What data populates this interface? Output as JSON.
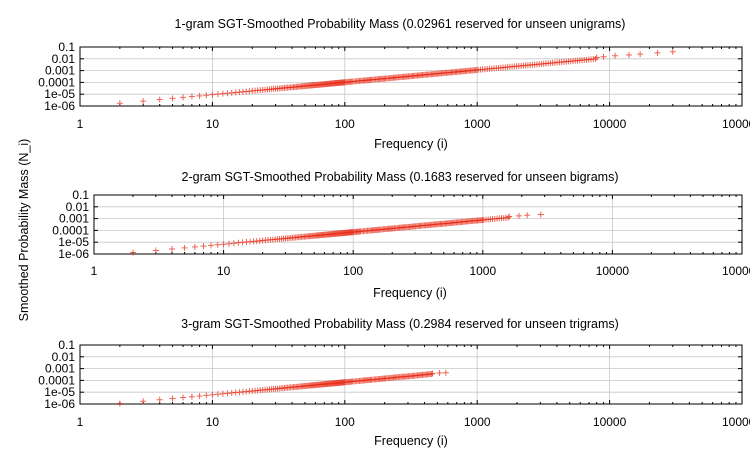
{
  "figure": {
    "shared_ylabel": "Smoothed Probability Mass (N_i)"
  },
  "chart_data": [
    {
      "type": "scatter",
      "title": "1-gram SGT-Smoothed Probability Mass (0.02961 reserved for unseen unigrams)",
      "xlabel": "Frequency (i)",
      "ylabel": "",
      "x_scale": "log",
      "y_scale": "log",
      "xlim": [
        1,
        100000
      ],
      "ylim": [
        1e-06,
        0.1
      ],
      "x_ticks": [
        "1",
        "10",
        "100",
        "1000",
        "10000",
        "100000"
      ],
      "y_ticks": [
        "0.1",
        "0.01",
        "0.001",
        "0.0001",
        "1e-05",
        "1e-06"
      ],
      "grid": true,
      "marker": "+",
      "color": "#e8301c",
      "series": [
        {
          "x_range": [
            2,
            30000
          ],
          "y_range": [
            1.7e-06,
            0.04
          ],
          "n_points": 240,
          "sparse_tail": [
            [
              8000,
              0.013
            ],
            [
              9000,
              0.015
            ],
            [
              11000,
              0.018
            ],
            [
              14000,
              0.021
            ],
            [
              17000,
              0.025
            ],
            [
              23000,
              0.032
            ],
            [
              30000,
              0.04
            ]
          ]
        }
      ]
    },
    {
      "type": "scatter",
      "title": "2-gram SGT-Smoothed Probability Mass (0.1683 reserved for unseen bigrams)",
      "xlabel": "Frequency (i)",
      "ylabel": "",
      "x_scale": "log",
      "y_scale": "log",
      "xlim": [
        1,
        100000
      ],
      "ylim": [
        1e-06,
        0.1
      ],
      "x_ticks": [
        "1",
        "10",
        "100",
        "1000",
        "10000",
        "100000"
      ],
      "y_ticks": [
        "0.1",
        "0.01",
        "0.001",
        "0.0001",
        "1e-05",
        "1e-06"
      ],
      "grid": true,
      "marker": "+",
      "color": "#e8301c",
      "series": [
        {
          "x_range": [
            2,
            2800
          ],
          "y_range": [
            1.3e-06,
            0.0022
          ],
          "n_points": 220,
          "sparse_tail": [
            [
              1600,
              0.0015
            ],
            [
              1900,
              0.0017
            ],
            [
              2200,
              0.0019
            ],
            [
              2800,
              0.0022
            ]
          ]
        }
      ]
    },
    {
      "type": "scatter",
      "title": "3-gram SGT-Smoothed Probability Mass (0.2984 reserved for unseen trigrams)",
      "xlabel": "Frequency (i)",
      "ylabel": "",
      "x_scale": "log",
      "y_scale": "log",
      "xlim": [
        1,
        100000
      ],
      "ylim": [
        1e-06,
        0.1
      ],
      "x_ticks": [
        "1",
        "10",
        "100",
        "1000",
        "10000",
        "100000"
      ],
      "y_ticks": [
        "0.1",
        "0.01",
        "0.001",
        "0.0001",
        "1e-05",
        "1e-06"
      ],
      "grid": true,
      "marker": "+",
      "color": "#e8301c",
      "series": [
        {
          "x_range": [
            2,
            580
          ],
          "y_range": [
            1.1e-06,
            0.00045
          ],
          "n_points": 190,
          "sparse_tail": [
            [
              460,
              0.00038
            ],
            [
              520,
              0.00042
            ],
            [
              580,
              0.00045
            ]
          ]
        }
      ]
    }
  ]
}
